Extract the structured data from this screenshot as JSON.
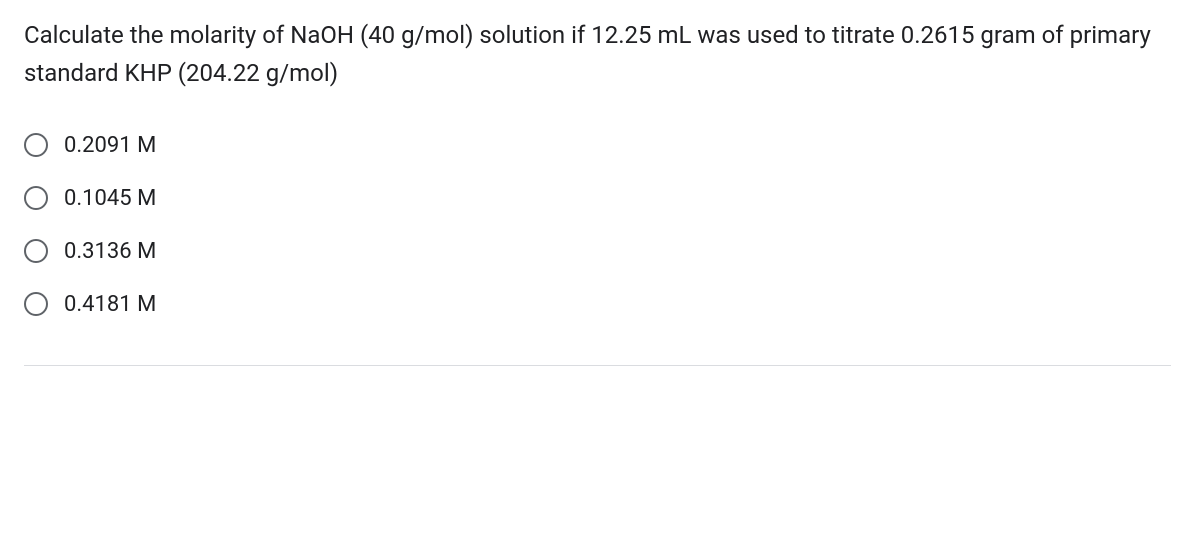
{
  "question": {
    "text": "Calculate the molarity of NaOH (40 g/mol) solution if 12.25 mL was used to titrate 0.2615 gram of primary standard KHP (204.22 g/mol)",
    "fontSize": 24,
    "textColor": "#202124"
  },
  "options": [
    {
      "label": "0.2091 M",
      "selected": false
    },
    {
      "label": "0.1045 M",
      "selected": false
    },
    {
      "label": "0.3136 M",
      "selected": false
    },
    {
      "label": "0.4181 M",
      "selected": false
    }
  ],
  "styling": {
    "backgroundColor": "#ffffff",
    "radioBorderColor": "#5f6368",
    "radioSize": 24,
    "optionFontSize": 22,
    "dividerColor": "#dadce0"
  }
}
